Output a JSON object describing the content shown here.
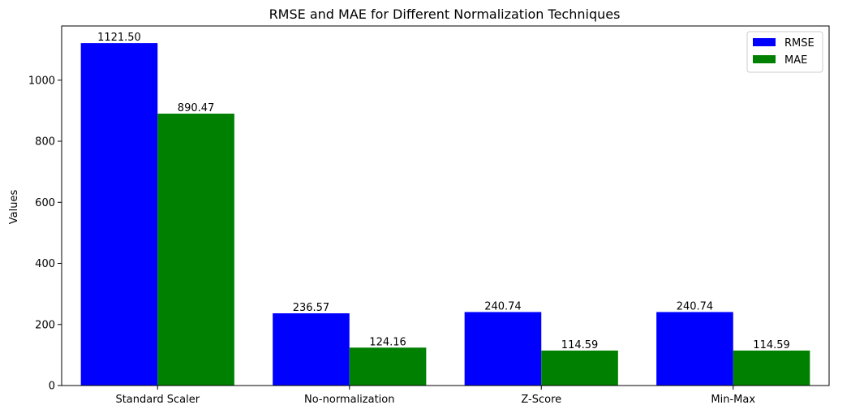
{
  "chart_data": {
    "type": "bar",
    "title": "RMSE and MAE for Different Normalization Techniques",
    "xlabel": "",
    "ylabel": "Values",
    "categories": [
      "Standard Scaler",
      "No-normalization",
      "Z-Score",
      "Min-Max"
    ],
    "series": [
      {
        "name": "RMSE",
        "color": "#0000ff",
        "values": [
          1121.5,
          236.57,
          240.74,
          240.74
        ],
        "labels": [
          "1121.50",
          "236.57",
          "240.74",
          "240.74"
        ]
      },
      {
        "name": "MAE",
        "color": "#008000",
        "values": [
          890.47,
          124.16,
          114.59,
          114.59
        ],
        "labels": [
          "890.47",
          "124.16",
          "114.59",
          "114.59"
        ]
      }
    ],
    "ylim": [
      0,
      1177.6
    ],
    "yticks": [
      0,
      200,
      400,
      600,
      800,
      1000
    ],
    "grid": false,
    "legend_position": "top-right"
  }
}
